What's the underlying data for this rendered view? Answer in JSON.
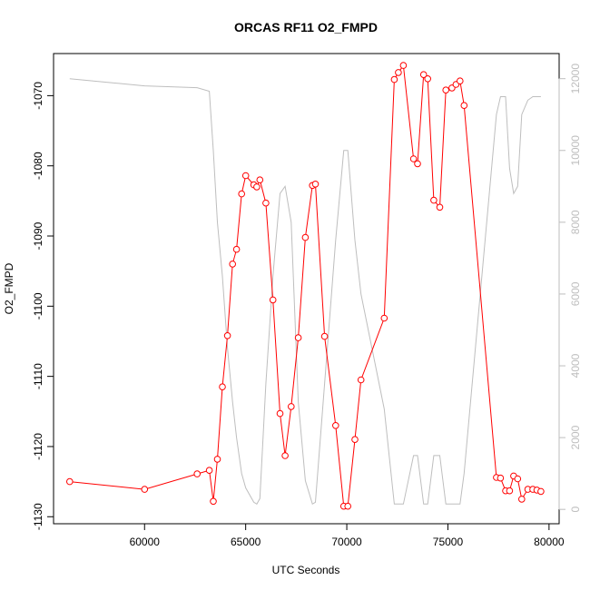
{
  "chart_data": {
    "type": "line",
    "title": "ORCAS RF11 O2_FMPD",
    "xlabel": "UTC Seconds",
    "ylabel": "O2_FMPD",
    "ylabel_right": "",
    "xlim": [
      55500,
      80500
    ],
    "ylim": [
      -1131,
      -1064
    ],
    "ylim_right": [
      -400,
      12700
    ],
    "x_ticks": [
      60000,
      65000,
      70000,
      75000,
      80000
    ],
    "y_ticks": [
      -1130,
      -1120,
      -1110,
      -1100,
      -1090,
      -1080,
      -1070
    ],
    "y_ticks_right": [
      0,
      2000,
      4000,
      6000,
      8000,
      10000,
      12000
    ],
    "grid": false,
    "colors": {
      "series_main": "#ff0000",
      "series_secondary": "#bebebe"
    },
    "series": [
      {
        "axis": "left",
        "style": "line+points",
        "x": [
          56300,
          60000,
          62600,
          63200,
          63400,
          63600,
          63850,
          64100,
          64350,
          64550,
          64800,
          65000,
          65400,
          65550,
          65700,
          66000,
          66350,
          66700,
          66950,
          67250,
          67600,
          67950,
          68300,
          68450,
          68900,
          69450,
          69850,
          70050,
          70400,
          70700,
          71850,
          72350,
          72550,
          72800,
          73300,
          73500,
          73800,
          74000,
          74300,
          74600,
          74900,
          75200,
          75400,
          75600,
          75800,
          77400,
          77600,
          77850,
          78050,
          78250,
          78450,
          78650,
          78950,
          79200,
          79400,
          79600
        ],
        "y": [
          -1125.0,
          -1126.1,
          -1123.9,
          -1123.4,
          -1127.8,
          -1121.8,
          -1111.5,
          -1104.2,
          -1094.0,
          -1091.9,
          -1084.0,
          -1081.4,
          -1082.7,
          -1083.0,
          -1082.0,
          -1085.3,
          -1099.1,
          -1115.3,
          -1121.3,
          -1114.3,
          -1104.5,
          -1090.2,
          -1082.8,
          -1082.6,
          -1104.3,
          -1117.0,
          -1128.5,
          -1128.5,
          -1119.0,
          -1110.5,
          -1101.7,
          -1067.7,
          -1066.7,
          -1065.7,
          -1079.0,
          -1079.7,
          -1067.0,
          -1067.6,
          -1084.9,
          -1085.9,
          -1069.2,
          -1068.9,
          -1068.4,
          -1067.9,
          -1071.4,
          -1124.4,
          -1124.5,
          -1126.3,
          -1126.3,
          -1124.2,
          -1124.6,
          -1127.5,
          -1126.1,
          -1126.1,
          -1126.2,
          -1126.4
        ]
      },
      {
        "axis": "right",
        "style": "line",
        "x": [
          56300,
          60000,
          62600,
          63200,
          63400,
          63600,
          63850,
          64100,
          64350,
          64550,
          64800,
          65000,
          65400,
          65550,
          65700,
          66000,
          66350,
          66700,
          66950,
          67250,
          67600,
          67950,
          68300,
          68450,
          68900,
          69450,
          69850,
          70050,
          70400,
          70700,
          71850,
          72350,
          72550,
          72800,
          73300,
          73500,
          73800,
          74000,
          74300,
          74600,
          74900,
          75200,
          75400,
          75600,
          75800,
          77400,
          77600,
          77850,
          78050,
          78250,
          78450,
          78650,
          78950,
          79200,
          79400,
          79600
        ],
        "y": [
          12000,
          11800,
          11750,
          11650,
          10000,
          8000,
          6500,
          4500,
          3000,
          2000,
          1000,
          600,
          200,
          150,
          300,
          3500,
          6500,
          8800,
          9000,
          8000,
          3000,
          800,
          150,
          200,
          3500,
          7500,
          10000,
          10000,
          7500,
          6000,
          2800,
          150,
          150,
          150,
          1500,
          1500,
          150,
          150,
          1500,
          1500,
          150,
          150,
          150,
          150,
          1000,
          11000,
          11500,
          11500,
          9500,
          8800,
          9000,
          11000,
          11400,
          11500,
          11500,
          11500
        ]
      }
    ]
  }
}
